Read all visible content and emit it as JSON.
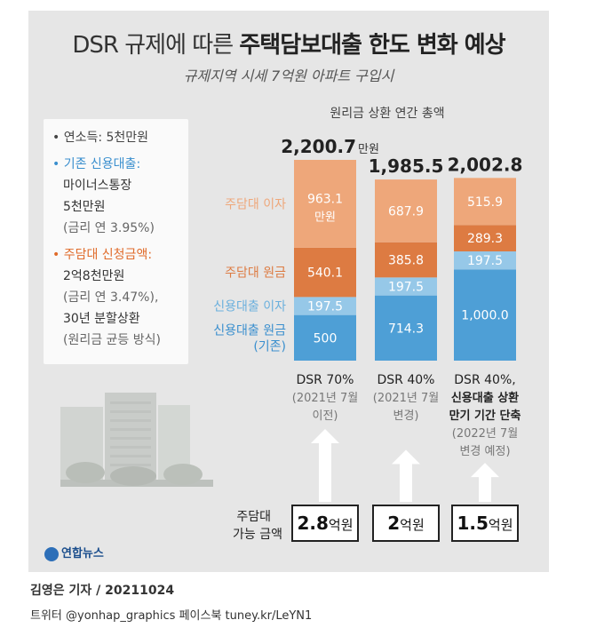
{
  "title": {
    "prefix": "DSR 규제에 따른 ",
    "bold": "주택담보대출 한도 변화 예상"
  },
  "subtitle": "규제지역 시세 7억원 아파트 구입시",
  "info": {
    "income": "• 연소득: 5천만원",
    "credit_head": "• 기존 신용대출:",
    "credit_l1": "마이너스통장",
    "credit_l2": "5천만원",
    "credit_l3": "(금리 연 3.95%)",
    "mortgage_head": "• 주담대 신청금액:",
    "mortgage_l1": "2억8천만원",
    "mortgage_l2": "(금리 연 3.47%),",
    "mortgage_l3": "30년 분할상환",
    "mortgage_l4": "(원리금 균등 방식)"
  },
  "colors": {
    "mortgage_interest": "#eea77a",
    "mortgage_principal": "#dd7b42",
    "credit_interest": "#96c8e8",
    "credit_principal": "#4e9fd6",
    "arrow": "#ffffff"
  },
  "chart_data": {
    "type": "bar",
    "stacked": true,
    "unit_label": "원리금 상환 연간 총액",
    "categories": [
      "DSR 70%",
      "DSR 40%",
      "DSR 40%,"
    ],
    "category_sub": [
      [
        "(2021년 7월",
        "이전)"
      ],
      [
        "(2021년 7월",
        "변경)"
      ],
      [
        "신용대출 상환",
        "만기 기간 단축",
        "(2022년 7월",
        "변경 예정)"
      ]
    ],
    "series": [
      {
        "name": "신용대출 원금",
        "sub": "(기존)",
        "color_key": "credit_principal",
        "values": [
          500,
          714.3,
          1000.0
        ],
        "labels": [
          "500",
          "714.3",
          "1,000.0"
        ]
      },
      {
        "name": "신용대출 이자",
        "color_key": "credit_interest",
        "values": [
          197.5,
          197.5,
          197.5
        ],
        "labels": [
          "197.5",
          "197.5",
          "197.5"
        ]
      },
      {
        "name": "주담대 원금",
        "color_key": "mortgage_principal",
        "values": [
          540.1,
          385.8,
          289.3
        ],
        "labels": [
          "540.1",
          "385.8",
          "289.3"
        ]
      },
      {
        "name": "주담대 이자",
        "color_key": "mortgage_interest",
        "values": [
          963.1,
          687.9,
          515.9
        ],
        "labels": [
          "963.1",
          "687.9",
          "515.9"
        ],
        "first_suffix": "만원"
      }
    ],
    "totals": [
      "2,200.7",
      "1,985.5",
      "2,002.8"
    ],
    "total_unit": "만원",
    "limit_title": [
      "주담대",
      "가능 금액"
    ],
    "limits": [
      {
        "num": "2.8",
        "unit": "억원",
        "value": 2.8
      },
      {
        "num": "2",
        "unit": "억원",
        "value": 2
      },
      {
        "num": "1.5",
        "unit": "억원",
        "value": 1.5
      }
    ]
  },
  "logo": "연합뉴스",
  "credit": "김영은 기자 / 20211024",
  "sns": "트위터 @yonhap_graphics  페이스북 tuney.kr/LeYN1"
}
